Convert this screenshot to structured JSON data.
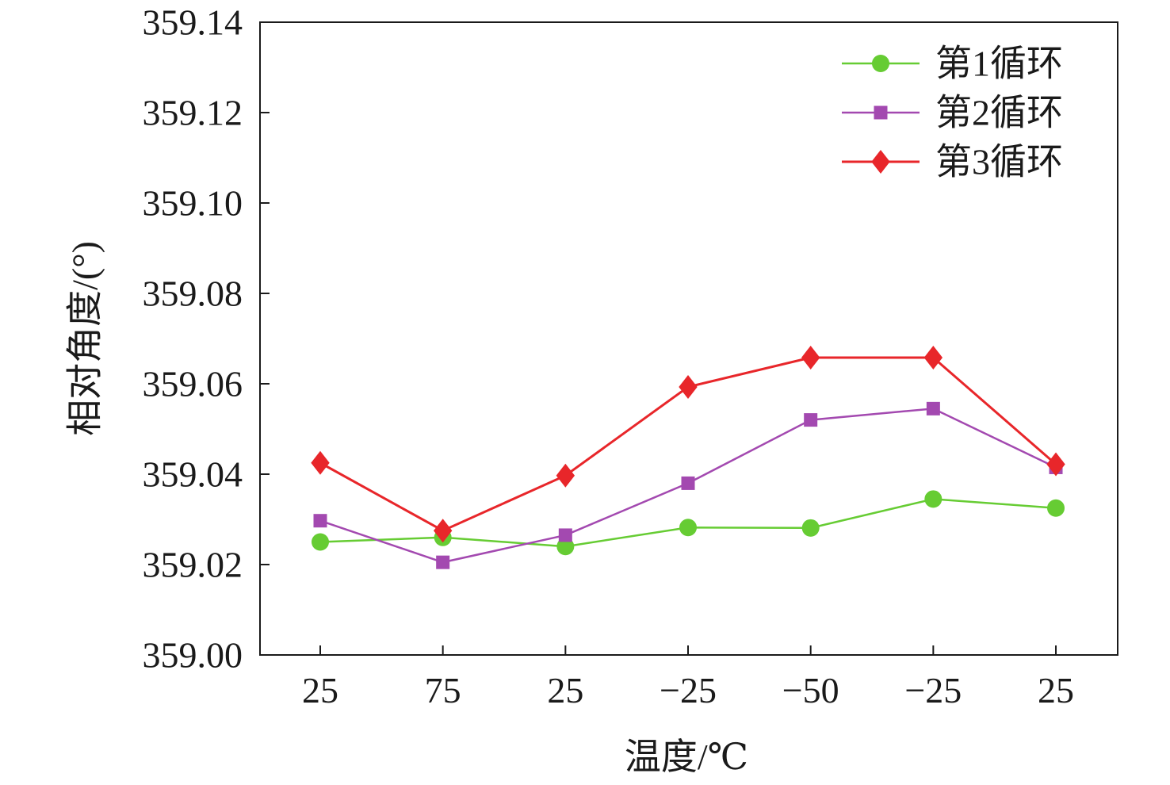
{
  "chart_data": {
    "type": "line",
    "xlabel": "温度/℃",
    "ylabel": "相对角度/(°)",
    "categories": [
      "25",
      "75",
      "25",
      "−25",
      "−50",
      "−25",
      "25"
    ],
    "ylim": [
      359.0,
      359.14
    ],
    "yticks": [
      "359.00",
      "359.02",
      "359.04",
      "359.06",
      "359.08",
      "359.10",
      "359.12",
      "359.14"
    ],
    "ytick_values": [
      359.0,
      359.02,
      359.04,
      359.06,
      359.08,
      359.1,
      359.12,
      359.14
    ],
    "grid": false,
    "legend_position": "top-right",
    "series": [
      {
        "name": "第1循环",
        "color": "#66cc33",
        "marker": "circle",
        "values": [
          359.025,
          359.026,
          359.024,
          359.0282,
          359.0281,
          359.0345,
          359.0325
        ]
      },
      {
        "name": "第2循环",
        "color": "#a349b0",
        "marker": "square",
        "values": [
          359.0297,
          359.0205,
          359.0265,
          359.038,
          359.052,
          359.0545,
          359.0415
        ]
      },
      {
        "name": "第3循环",
        "color": "#e8262a",
        "marker": "diamond",
        "values": [
          359.0425,
          359.0275,
          359.0397,
          359.0593,
          359.0658,
          359.0658,
          359.0422
        ]
      }
    ]
  }
}
